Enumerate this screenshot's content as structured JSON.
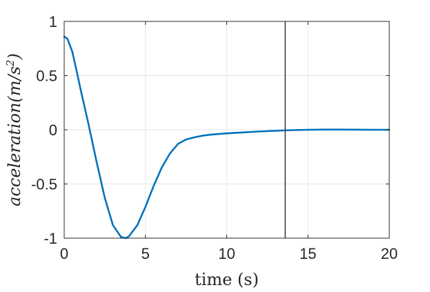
{
  "chart_data": {
    "type": "line",
    "title": "",
    "xlabel": "time (s)",
    "ylabel": {
      "base": "acceleration(m/s",
      "sup": "2",
      "close": ")"
    },
    "xlim": [
      0,
      20
    ],
    "ylim": [
      -1,
      1
    ],
    "xticks": [
      0,
      5,
      10,
      15,
      20
    ],
    "xtick_labels": [
      "0",
      "5",
      "10",
      "15",
      "20"
    ],
    "yticks": [
      -1,
      -0.5,
      0,
      0.5,
      1
    ],
    "ytick_labels": [
      "-1",
      "-0.5",
      "0",
      "0.5",
      "1"
    ],
    "grid": true,
    "colors": {
      "series": "#0072BD",
      "vline": "#404040",
      "grid": "#e6e6e6",
      "axes": "#262626"
    },
    "vertical_line_x": 13.6,
    "series": [
      {
        "x": [
          0,
          0.2,
          0.5,
          0.8,
          1.0,
          1.5,
          2.0,
          2.5,
          3.0,
          3.5,
          3.8,
          4.0,
          4.5,
          5.0,
          5.5,
          6.0,
          6.5,
          7.0,
          7.5,
          8.0,
          8.5,
          9.0,
          10.0,
          11.0,
          12.0,
          13.0,
          14.0,
          15.0,
          16.0,
          17.0,
          18.0,
          19.0,
          20.0
        ],
        "y": [
          0.86,
          0.84,
          0.72,
          0.52,
          0.38,
          0.05,
          -0.3,
          -0.63,
          -0.88,
          -0.99,
          -1.0,
          -0.98,
          -0.88,
          -0.71,
          -0.52,
          -0.35,
          -0.22,
          -0.13,
          -0.09,
          -0.07,
          -0.055,
          -0.045,
          -0.033,
          -0.024,
          -0.016,
          -0.009,
          -0.003,
          0.0,
          0.002,
          0.002,
          0.001,
          0.0,
          0.0
        ]
      }
    ]
  }
}
